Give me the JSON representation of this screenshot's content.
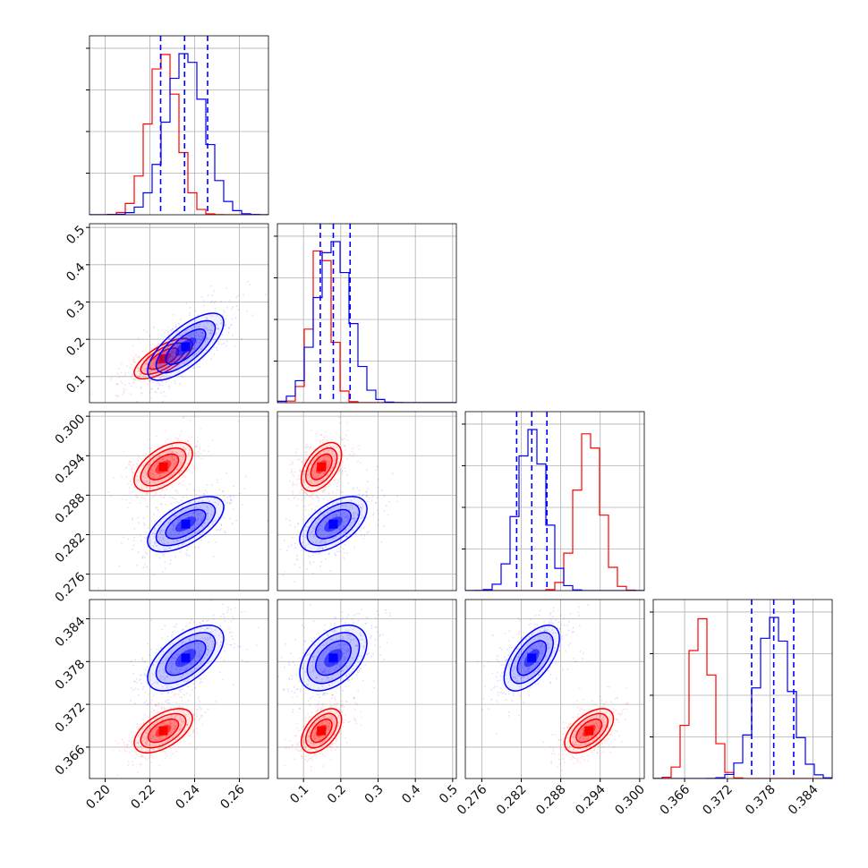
{
  "colors": {
    "red": "#ff0000",
    "blue": "#0000ff",
    "grid": "#b0b0b0",
    "frame": "#000000"
  },
  "chart_data": {
    "type": "corner",
    "params": [
      {
        "range": [
          0.193,
          0.273
        ],
        "ticks": [
          "0.20",
          "0.22",
          "0.24",
          "0.26"
        ]
      },
      {
        "range": [
          0.03,
          0.51
        ],
        "ticks": [
          "0.1",
          "0.2",
          "0.3",
          "0.4",
          "0.5"
        ]
      },
      {
        "range": [
          0.2735,
          0.3007
        ],
        "ticks": [
          "0.276",
          "0.282",
          "0.288",
          "0.294",
          "0.300"
        ]
      },
      {
        "range": [
          0.3616,
          0.3867
        ],
        "ticks": [
          "0.366",
          "0.372",
          "0.378",
          "0.384"
        ]
      }
    ],
    "series": [
      {
        "color": "#ff0000",
        "mean": [
          0.226,
          0.148,
          0.2923,
          0.3683
        ],
        "std": [
          0.0065,
          0.027,
          0.00185,
          0.00155
        ],
        "corr": [
          [
            1,
            0.7,
            0.55,
            0.55
          ],
          [
            0.7,
            1,
            0.5,
            0.5
          ],
          [
            0.55,
            0.5,
            1,
            0.55
          ],
          [
            0.55,
            0.5,
            0.55,
            1
          ]
        ],
        "quantiles": []
      },
      {
        "color": "#0000ff",
        "mean": [
          0.236,
          0.18,
          0.2836,
          0.3785
        ],
        "std": [
          0.0085,
          0.045,
          0.0021,
          0.0023
        ],
        "corr": [
          [
            1,
            0.72,
            0.62,
            0.6
          ],
          [
            0.72,
            1,
            0.55,
            0.45
          ],
          [
            0.62,
            0.55,
            1,
            0.6
          ],
          [
            0.6,
            0.45,
            0.6,
            1
          ]
        ],
        "quantiles": [
          [
            0.2248,
            0.2355,
            0.2458
          ],
          [
            0.145,
            0.18,
            0.225
          ],
          [
            0.2813,
            0.2836,
            0.2859
          ],
          [
            0.3754,
            0.3785,
            0.3813
          ]
        ]
      }
    ]
  }
}
